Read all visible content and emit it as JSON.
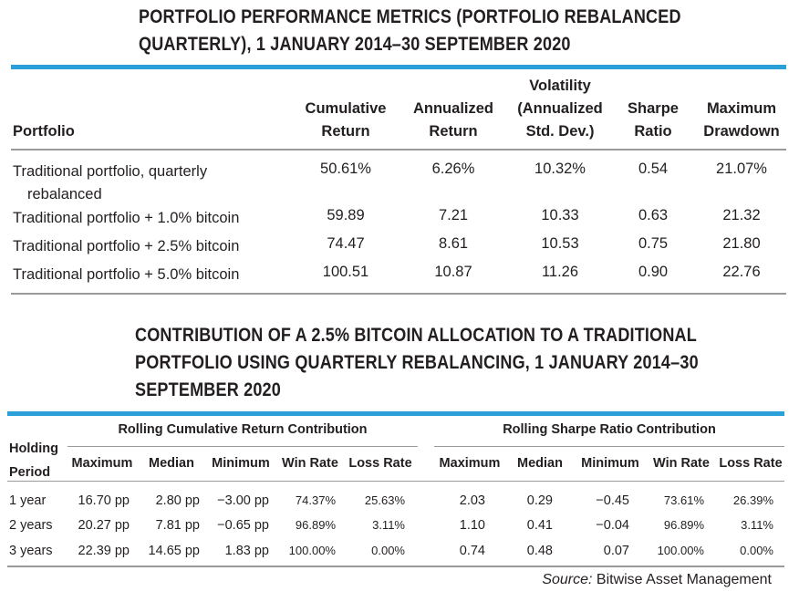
{
  "table1": {
    "title": "PORTFOLIO PERFORMANCE METRICS (PORTFOLIO REBALANCED QUARTERLY), 1 JANUARY 2014–30 SEPTEMBER 2020",
    "headers": {
      "portfolio": "Portfolio",
      "cumulative": [
        "Cumulative",
        "Return"
      ],
      "annualized": [
        "Annualized",
        "Return"
      ],
      "volatility": [
        "Volatility",
        "(Annualized",
        "Std. Dev.)"
      ],
      "sharpe": [
        "Sharpe",
        "Ratio"
      ],
      "drawdown": [
        "Maximum",
        "Drawdown"
      ]
    },
    "rows": [
      {
        "label": "Traditional portfolio, quarterly",
        "label2": "rebalanced",
        "cumulative": "50.61%",
        "annualized": "6.26%",
        "volatility": "10.32%",
        "sharpe": "0.54",
        "drawdown": "21.07%"
      },
      {
        "label": "Traditional portfolio + 1.0% bitcoin",
        "label2": "",
        "cumulative": "59.89",
        "annualized": "7.21",
        "volatility": "10.33",
        "sharpe": "0.63",
        "drawdown": "21.32"
      },
      {
        "label": "Traditional portfolio + 2.5% bitcoin",
        "label2": "",
        "cumulative": "74.47",
        "annualized": "8.61",
        "volatility": "10.53",
        "sharpe": "0.75",
        "drawdown": "21.80"
      },
      {
        "label": "Traditional portfolio + 5.0% bitcoin",
        "label2": "",
        "cumulative": "100.51",
        "annualized": "10.87",
        "volatility": "11.26",
        "sharpe": "0.90",
        "drawdown": "22.76"
      }
    ]
  },
  "table2": {
    "title": "CONTRIBUTION OF A 2.5% BITCOIN ALLOCATION TO A TRADITIONAL PORTFOLIO USING QUARTERLY REBALANCING, 1 JANUARY 2014–30 SEPTEMBER 2020",
    "holding_label": [
      "Holding",
      "Period"
    ],
    "group_return": "Rolling Cumulative Return Contribution",
    "group_sharpe": "Rolling Sharpe Ratio Contribution",
    "subheaders": [
      "Maximum",
      "Median",
      "Minimum",
      "Win Rate",
      "Loss Rate",
      "Maximum",
      "Median",
      "Minimum",
      "Win Rate",
      "Loss Rate"
    ],
    "rows": [
      {
        "period": "1 year",
        "values": [
          "16.70 pp",
          "2.80 pp",
          "−3.00 pp",
          "74.37%",
          "25.63%",
          "2.03",
          "0.29",
          "−0.45",
          "73.61%",
          "26.39%"
        ]
      },
      {
        "period": "2 years",
        "values": [
          "20.27 pp",
          "7.81 pp",
          "−0.65 pp",
          "96.89%",
          "3.11%",
          "1.10",
          "0.41",
          "−0.04",
          "96.89%",
          "3.11%"
        ]
      },
      {
        "period": "3 years",
        "values": [
          "22.39 pp",
          "14.65 pp",
          "1.83 pp",
          "100.00%",
          "0.00%",
          "0.74",
          "0.48",
          "0.07",
          "100.00%",
          "0.00%"
        ]
      }
    ]
  },
  "source": {
    "label": "Source:",
    "text": " Bitwise Asset Management"
  },
  "colors": {
    "accent_rule": "#2b9fd8",
    "text": "#231f20",
    "divider": "#9a9a9a"
  }
}
